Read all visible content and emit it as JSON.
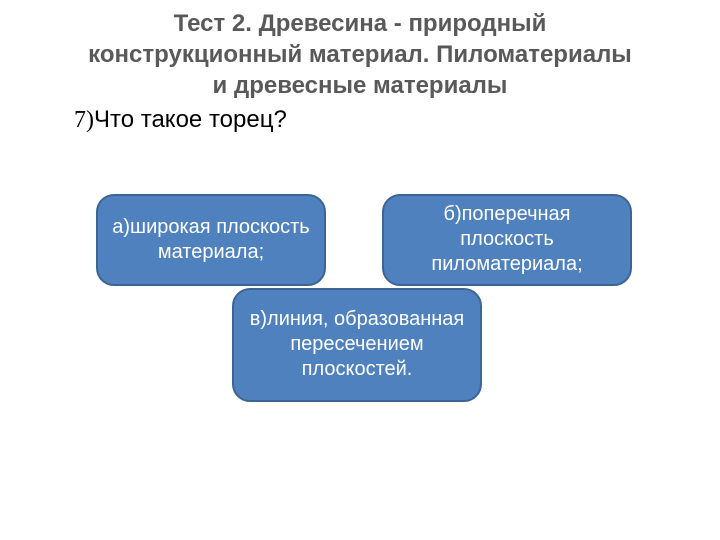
{
  "title": "Тест 2. Древесина - природный конструкционный материал. Пиломатериалы и древесные материалы",
  "question": {
    "number": "7)",
    "text": "Что такое торец?"
  },
  "answers": {
    "a": "а)широкая плоскость материала;",
    "b": "б)поперечная плоскость пиломатериала;",
    "c": "в)линия, образованная пересечением плоскостей."
  },
  "colors": {
    "title": "#595959",
    "question": "#000000",
    "answer_bg": "#4e81bd",
    "answer_border": "#3c6594",
    "answer_text": "#ffffff",
    "background": "#ffffff"
  },
  "font": {
    "title_size": 24,
    "title_weight": "bold",
    "question_size": 24,
    "answer_size": 20
  }
}
